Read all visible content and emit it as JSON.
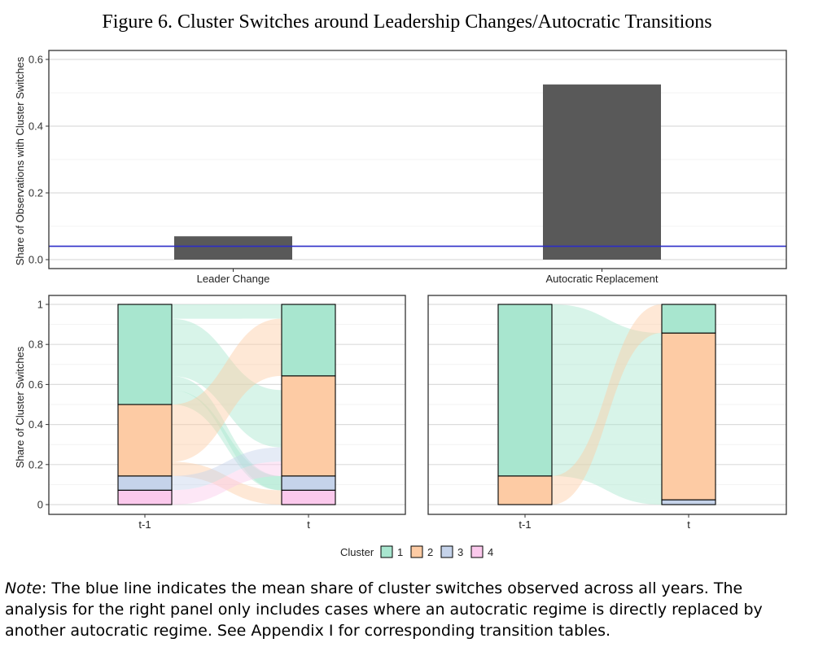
{
  "figure_title": "Figure 6. Cluster Switches around Leadership Changes/Autocratic Transitions",
  "note_label": "Note",
  "note_text": ": The blue line indicates the mean share of cluster switches observed across all years. The analysis for the right panel only includes cases where an autocratic regime is directly replaced by another autocratic regime. See Appendix I for corresponding transition tables.",
  "colors": {
    "bar": "#595959",
    "mean_line": "#2c2cc8",
    "cluster_1": "#a8e6cf",
    "cluster_2": "#fdcba4",
    "cluster_3": "#c5d3ea",
    "cluster_4": "#fbc9ec"
  },
  "chart_data": [
    {
      "type": "bar",
      "categories": [
        "Leader Change",
        "Autocratic Replacement"
      ],
      "values": [
        0.07,
        0.525
      ],
      "ylabel": "Share of Observations with Cluster Switches",
      "ylim": [
        0,
        0.6
      ],
      "yticks": [
        "0.0",
        "0.2",
        "0.4",
        "0.6"
      ],
      "reference_line": 0.04,
      "grid": true
    },
    {
      "type": "alluvial",
      "x": [
        "t-1",
        "t"
      ],
      "ylabel": "Share of Cluster Switches",
      "ylim": [
        0,
        1
      ],
      "yticks": [
        "0",
        "0.2",
        "0.4",
        "0.6",
        "0.8",
        "1"
      ],
      "stack_order": [
        "4",
        "3",
        "2",
        "1"
      ],
      "shares": {
        "t-1": {
          "1": 0.5,
          "2": 0.357,
          "3": 0.071,
          "4": 0.072
        },
        "t": {
          "1": 0.357,
          "2": 0.5,
          "3": 0.071,
          "4": 0.072
        }
      },
      "flows": [
        {
          "from": "1",
          "to": "2",
          "value": 0.286
        },
        {
          "from": "1",
          "to": "3",
          "value": 0.071
        },
        {
          "from": "1",
          "to": "4",
          "value": 0.071
        },
        {
          "from": "1",
          "to": "1",
          "value": 0.072
        },
        {
          "from": "2",
          "to": "1",
          "value": 0.286
        },
        {
          "from": "2",
          "to": "4",
          "value": 0.071
        },
        {
          "from": "3",
          "to": "2",
          "value": 0.071
        },
        {
          "from": "4",
          "to": "2",
          "value": 0.072
        }
      ]
    },
    {
      "type": "alluvial",
      "x": [
        "t-1",
        "t"
      ],
      "ylim": [
        0,
        1
      ],
      "stack_order": [
        "4",
        "3",
        "2",
        "1"
      ],
      "shares": {
        "t-1": {
          "1": 0.857,
          "2": 0.143,
          "3": 0.0,
          "4": 0.0
        },
        "t": {
          "1": 0.143,
          "2": 0.833,
          "3": 0.024,
          "4": 0.0
        }
      },
      "flows": [
        {
          "from": "1",
          "to": "2",
          "value": 0.833
        },
        {
          "from": "1",
          "to": "3",
          "value": 0.024
        },
        {
          "from": "2",
          "to": "1",
          "value": 0.143
        }
      ]
    }
  ],
  "legend": {
    "title": "Cluster",
    "items": [
      "1",
      "2",
      "3",
      "4"
    ]
  }
}
